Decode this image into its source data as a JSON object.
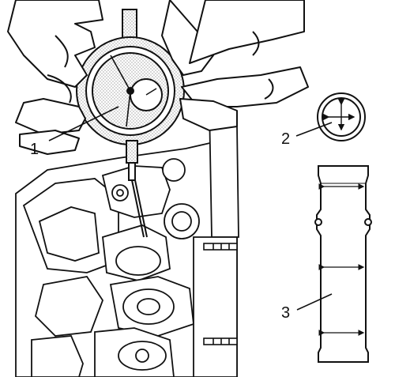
{
  "figure": {
    "callouts": [
      {
        "id": "1",
        "label": "1"
      },
      {
        "id": "2",
        "label": "2"
      },
      {
        "id": "3",
        "label": "3"
      }
    ],
    "colors": {
      "ink": "#111111",
      "stipple": "#9a9a9a",
      "background": "#ffffff"
    },
    "icons": [
      "dial-gauge-icon",
      "hands-icon",
      "cylinder-head-icon",
      "tappet-top-view-icon",
      "tappet-side-view-icon"
    ]
  }
}
